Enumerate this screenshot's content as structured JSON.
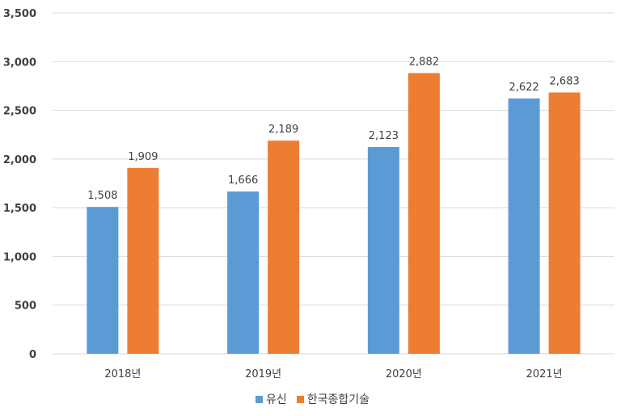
{
  "chart_data": {
    "type": "bar",
    "categories": [
      "2018년",
      "2019년",
      "2020년",
      "2021년"
    ],
    "series": [
      {
        "name": "유신",
        "values": [
          1508,
          1666,
          2123,
          2622
        ],
        "labels": [
          "1,508",
          "1,666",
          "2,123",
          "2,622"
        ],
        "color": "#5B9BD5"
      },
      {
        "name": "한국종합기술",
        "values": [
          1909,
          2189,
          2882,
          2683
        ],
        "labels": [
          "1,909",
          "2,189",
          "2,882",
          "2,683"
        ],
        "color": "#ED7D31"
      }
    ],
    "ylim": [
      0,
      3500
    ],
    "yticks": [
      0,
      500,
      1000,
      1500,
      2000,
      2500,
      3000,
      3500
    ],
    "ytick_labels": [
      "0",
      "500",
      "1,000",
      "1,500",
      "2,000",
      "2,500",
      "3,000",
      "3,500"
    ],
    "grid": true,
    "legend_position": "bottom"
  }
}
